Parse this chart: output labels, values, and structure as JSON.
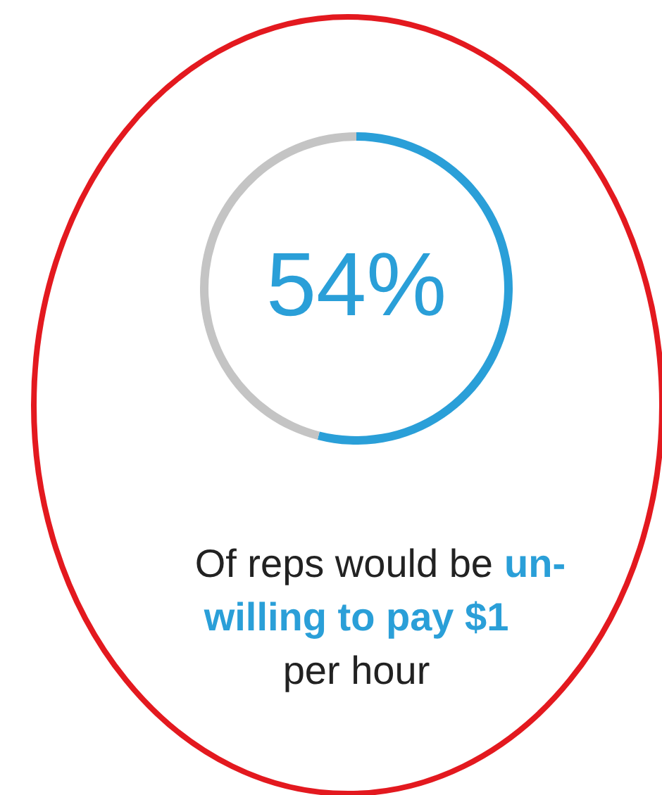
{
  "chart_data": {
    "type": "donut",
    "categories": [
      null,
      null
    ],
    "values": [
      54,
      46
    ],
    "colors": [
      "#2a9fd8",
      "#c4c4c4"
    ],
    "value_labels": [
      "54%",
      null
    ],
    "annotations": [
      "Of reps would be",
      "un-",
      "willing to pay $1",
      "per hour"
    ]
  }
}
